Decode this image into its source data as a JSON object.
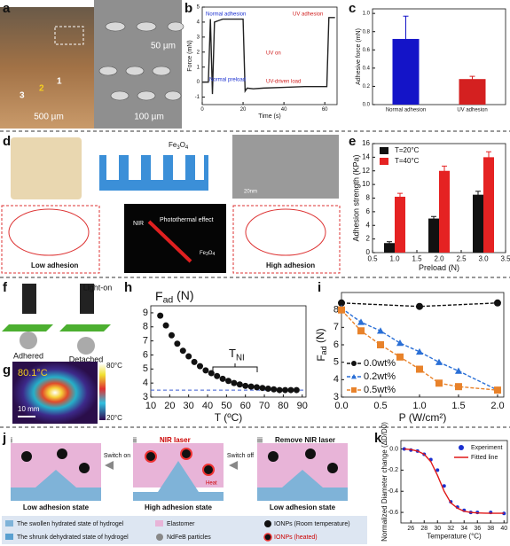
{
  "panels": {
    "labels": [
      "a",
      "b",
      "c",
      "d",
      "e",
      "f",
      "g",
      "h",
      "i",
      "j",
      "k"
    ]
  },
  "panel_a": {
    "scale_photo": "500 µm",
    "scale_sem_top": "50 µm",
    "scale_sem_bottom": "100 µm",
    "markers": [
      "1",
      "2",
      "3"
    ]
  },
  "panel_d": {
    "fe3o4": {
      "main": "Fe",
      "sub1": "3",
      "mid": "O",
      "sub2": "4"
    },
    "tem_scale": "20nm",
    "low": "Low adhesion",
    "high": "High adhesion",
    "nir": "NIR",
    "effect": "Photothermal effect"
  },
  "panel_f": {
    "light": "Light-on",
    "adhered": "Adhered",
    "detached": "Detached"
  },
  "panel_g": {
    "spot": "80.1°C",
    "bar_max": "80°C",
    "bar_min": "20°C",
    "scale": "10 mm"
  },
  "panel_j": {
    "steps": [
      "i",
      "ii",
      "iii"
    ],
    "laser": "NIR laser",
    "switch_on": "Switch on",
    "switch_off": "Switch off",
    "remove": "Remove NIR laser",
    "heat": "Heat",
    "states": [
      "Low adhesion state",
      "High adhesion state",
      "Low adhesion state"
    ],
    "legend": [
      "The swollen hydrated state of hydrogel",
      "Elastomer",
      "IONPs (Room temperature)",
      "The shrunk dehydrated state of hydrogel",
      "NdFeB particles",
      "IONPs (heated)"
    ]
  },
  "chart_data": [
    {
      "type": "line",
      "xlabel": "Time (s)",
      "ylabel": "Force (mN)",
      "xlim": [
        0,
        66
      ],
      "xticks": [
        0,
        20,
        40,
        60
      ],
      "ylim": [
        -1.5,
        5
      ],
      "yticks": [
        -1,
        0,
        1,
        2,
        3,
        4,
        5
      ],
      "annotations": [
        "Normal adhesion",
        "UV adhesion",
        "Normal preload",
        "UV on",
        "UV-driven load"
      ],
      "series": [
        {
          "name": null,
          "color": "#222222",
          "x": [
            0,
            3,
            4,
            5,
            6,
            8,
            10,
            20,
            21,
            22,
            25,
            30,
            40,
            50,
            60,
            61,
            62,
            63,
            65
          ],
          "values": [
            0,
            0,
            4.2,
            -0.8,
            4.0,
            4.1,
            4.2,
            4.2,
            -0.6,
            -0.4,
            -0.45,
            -0.4,
            -0.35,
            -0.3,
            -0.3,
            -0.3,
            4.3,
            4.3,
            4.3
          ]
        }
      ]
    },
    {
      "type": "bar",
      "ylabel": "Adhesive force (mN)",
      "categories": [
        "Normal adhesion",
        "UV adhesion"
      ],
      "ylim": [
        0,
        1.05
      ],
      "yticks": [
        {
          "value": 0,
          "label": "0.0"
        },
        0.2,
        0.4,
        0.6,
        0.8,
        {
          "value": 1,
          "label": "1.0"
        }
      ],
      "series": [
        {
          "name": null,
          "colors": [
            "#1414c8",
            "#d42020"
          ],
          "values": [
            0.72,
            0.28
          ],
          "errors": [
            0.25,
            0.03
          ]
        }
      ]
    },
    {
      "type": "bar",
      "xlabel": "Preload (N)",
      "ylabel": "Adhesion strength (KPa)",
      "x": [
        1,
        2,
        3
      ],
      "bar_width": 0.24,
      "legend": "top-left",
      "xlim": [
        0.5,
        3.5
      ],
      "xticks": [
        0.5,
        {
          "value": 1,
          "label": "1.0"
        },
        1.5,
        {
          "value": 2,
          "label": "2.0"
        },
        2.5,
        {
          "value": 3,
          "label": "3.0"
        },
        3.5
      ],
      "ylim": [
        0,
        16
      ],
      "yticks": [
        0,
        2,
        4,
        6,
        8,
        10,
        12,
        14,
        16
      ],
      "series": [
        {
          "name": "T=20°C",
          "color": "#111111",
          "values": [
            1.4,
            5.0,
            8.5
          ],
          "errors": [
            0.2,
            0.3,
            0.5
          ]
        },
        {
          "name": "T=40°C",
          "color": "#e52222",
          "values": [
            8.2,
            12.0,
            14.0
          ],
          "errors": [
            0.5,
            0.7,
            0.8
          ]
        }
      ]
    },
    {
      "type": "scatter",
      "title": {
        "main": "F",
        "sub": "ad",
        "unit": " (N)"
      },
      "xlabel": {
        "main": "T",
        "unit": " (ºC)"
      },
      "annotation": {
        "main": "T",
        "sub": "NI"
      },
      "xlim": [
        10,
        92
      ],
      "xticks": [
        10,
        20,
        30,
        40,
        50,
        60,
        70,
        80,
        90
      ],
      "ylim": [
        3,
        9.5
      ],
      "yticks": [
        3,
        4,
        5,
        6,
        7,
        8,
        9
      ],
      "ref_line": 3.5,
      "color": "#111111",
      "x": [
        15,
        18,
        21,
        24,
        27,
        30,
        33,
        36,
        39,
        42,
        45,
        48,
        51,
        54,
        57,
        60,
        63,
        66,
        69,
        72,
        75,
        78,
        81,
        84,
        87
      ],
      "values": [
        8.8,
        8.1,
        7.4,
        6.8,
        6.3,
        5.9,
        5.5,
        5.2,
        4.9,
        4.7,
        4.5,
        4.3,
        4.15,
        4.0,
        3.9,
        3.8,
        3.75,
        3.7,
        3.65,
        3.6,
        3.55,
        3.5,
        3.5,
        3.5,
        3.5
      ]
    },
    {
      "type": "line",
      "xlabel": {
        "main": "P",
        "unit": " (W/cm²)"
      },
      "ylabel": {
        "main": "F",
        "sub": "ad",
        "unit": " (N)"
      },
      "legend": "bottom-left",
      "xlim": [
        0,
        2.08
      ],
      "xticks": [
        {
          "value": 0,
          "label": "0.0"
        },
        0.5,
        {
          "value": 1,
          "label": "1.0"
        },
        1.5,
        {
          "value": 2,
          "label": "2.0"
        }
      ],
      "ylim": [
        3,
        9
      ],
      "yticks": [
        3,
        4,
        5,
        6,
        7,
        8
      ],
      "series": [
        {
          "name": "0.0wt%",
          "color": "#111111",
          "marker": "circle",
          "dash": true,
          "x": [
            0,
            1,
            2
          ],
          "values": [
            8.4,
            8.2,
            8.4
          ]
        },
        {
          "name": "0.2wt%",
          "color": "#2a6fd6",
          "marker": "triangle",
          "dash": true,
          "x": [
            0,
            0.25,
            0.5,
            0.75,
            1,
            1.25,
            1.5,
            2
          ],
          "values": [
            8.1,
            7.3,
            6.8,
            6.1,
            5.6,
            5.0,
            4.5,
            3.4
          ]
        },
        {
          "name": "0.5wt%",
          "color": "#e8822a",
          "marker": "square",
          "dash": true,
          "x": [
            0,
            0.25,
            0.5,
            0.75,
            1,
            1.25,
            1.5,
            2
          ],
          "values": [
            8.0,
            6.8,
            6.0,
            5.3,
            4.6,
            3.8,
            3.6,
            3.4
          ]
        }
      ]
    },
    {
      "type": "line",
      "xlabel": "Temperature (°C)",
      "ylabel": "Normalized Diameter change (ΔD/D0)",
      "legend": "top-right",
      "xlim": [
        24.5,
        40.5
      ],
      "xticks": [
        26,
        28,
        30,
        32,
        34,
        36,
        38,
        40
      ],
      "ylim": [
        -0.7,
        0.08
      ],
      "yticks": [
        {
          "value": 0,
          "label": "0.0"
        },
        -0.2,
        -0.4,
        -0.6
      ],
      "series": [
        {
          "name": "Experiment",
          "color": "#1a2fd0",
          "marker": "circle",
          "line": false,
          "x": [
            25,
            26,
            27,
            28,
            29,
            30,
            31,
            32,
            33,
            34,
            35,
            36,
            38,
            40
          ],
          "values": [
            0.0,
            -0.01,
            -0.02,
            -0.05,
            -0.1,
            -0.2,
            -0.35,
            -0.5,
            -0.55,
            -0.58,
            -0.6,
            -0.6,
            -0.6,
            -0.61
          ]
        },
        {
          "name": "Fitted line",
          "color": "#e01818",
          "x": [
            25,
            26,
            27,
            28,
            29,
            30,
            31,
            32,
            33,
            34,
            35,
            36,
            37,
            38,
            39,
            40
          ],
          "values": [
            0.0,
            -0.005,
            -0.02,
            -0.05,
            -0.12,
            -0.25,
            -0.4,
            -0.51,
            -0.56,
            -0.59,
            -0.6,
            -0.605,
            -0.607,
            -0.608,
            -0.608,
            -0.608
          ]
        }
      ]
    }
  ]
}
